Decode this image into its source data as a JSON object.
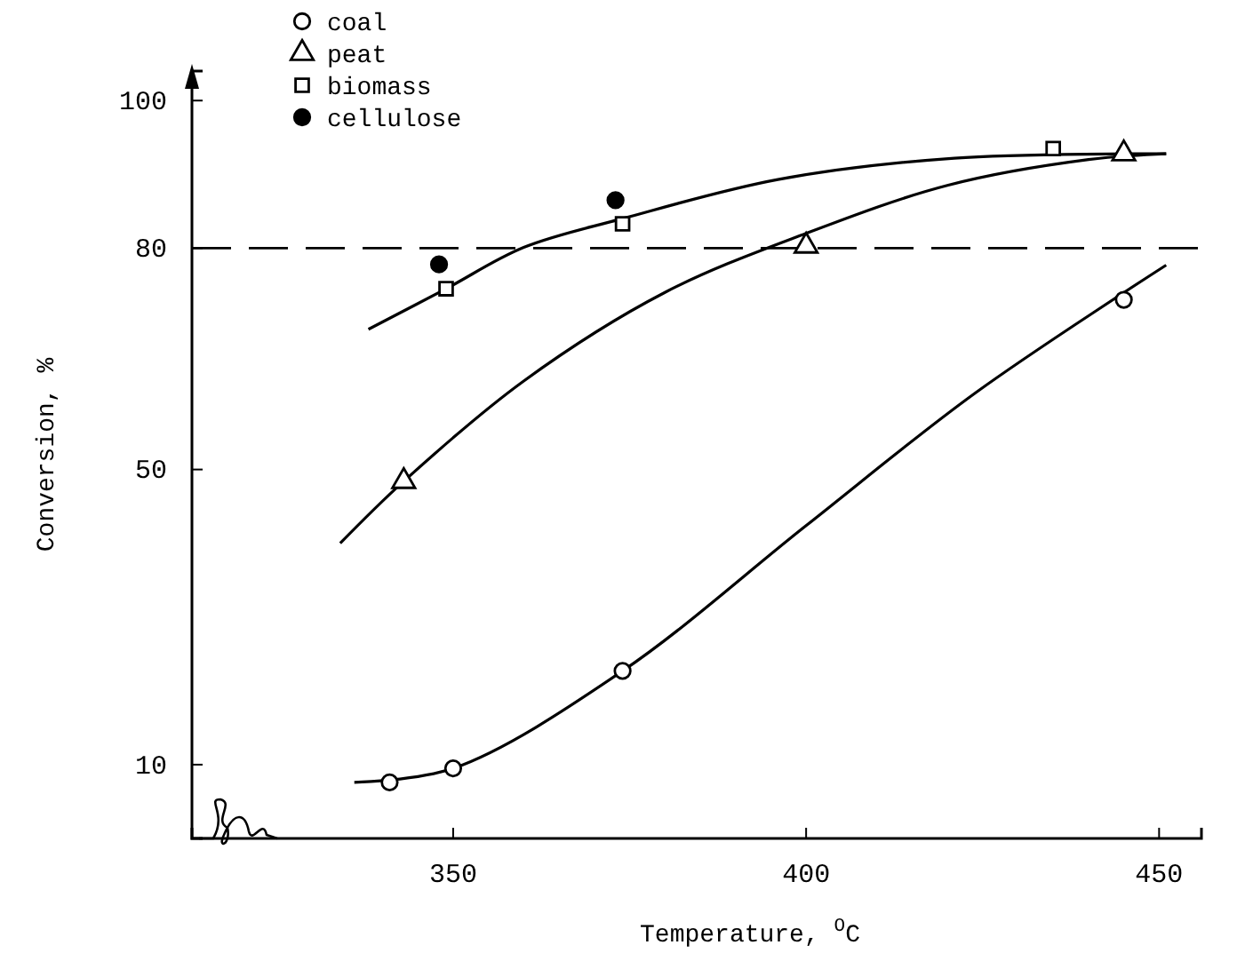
{
  "chart_data": {
    "type": "scatter",
    "xlabel": "Temperature, $^{O}$C",
    "ylabel": "Conversion, %",
    "xlim": [
      313,
      456
    ],
    "ylim": [
      0,
      104
    ],
    "xticks": [
      350,
      400,
      450
    ],
    "yticks": [
      10,
      50,
      80,
      100
    ],
    "grid": false,
    "legend": "top left",
    "ref_lines": [
      {
        "axis": "y",
        "value": 80,
        "line_style": "dashed",
        "color": "#000000"
      }
    ],
    "series": [
      {
        "name": "coal",
        "marker": "circle",
        "color": "#ffffff",
        "x": [
          341,
          350,
          374,
          445
        ],
        "values": [
          7.6,
          9.5,
          22.7,
          73
        ]
      },
      {
        "name": "peat",
        "marker": "triangle",
        "color": "#ffffff",
        "x": [
          343,
          400,
          445
        ],
        "values": [
          48.4,
          80.3,
          92.8
        ]
      },
      {
        "name": "biomass",
        "marker": "square",
        "color": "#ffffff",
        "x": [
          349,
          374,
          435
        ],
        "values": [
          74.5,
          83.3,
          93.5
        ]
      },
      {
        "name": "cellulose",
        "marker": "circle",
        "color": "#000000",
        "x": [
          348,
          373
        ],
        "values": [
          77.8,
          86.5
        ]
      },
      {
        "type": "line",
        "color": "#000000",
        "x": [
          336,
          350,
          374,
          400,
          424,
          451
        ],
        "values": [
          7.6,
          9.5,
          22.7,
          42.4,
          60.4,
          77.7
        ]
      },
      {
        "type": "line",
        "color": "#000000",
        "x": [
          334,
          343,
          360,
          380,
          400,
          420,
          440,
          451
        ],
        "values": [
          40,
          48.4,
          62,
          74,
          82,
          88.5,
          92,
          92.8
        ]
      },
      {
        "type": "line",
        "color": "#000000",
        "x": [
          338,
          349,
          360,
          374,
          396,
          421,
          451
        ],
        "values": [
          69,
          74.5,
          80.1,
          84,
          89.3,
          92.2,
          92.8
        ]
      }
    ]
  }
}
